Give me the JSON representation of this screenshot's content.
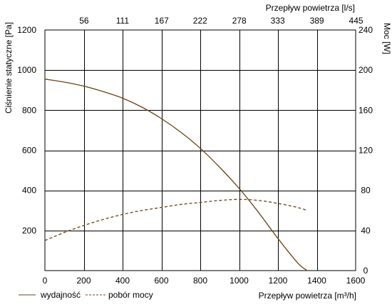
{
  "chart_data": {
    "type": "line",
    "xlabel": "Przepływ powietrza [m³/h]",
    "x_ticks": [
      "0",
      "200",
      "400",
      "600",
      "800",
      "1000",
      "1200",
      "1400",
      "1600"
    ],
    "xlim": [
      0,
      1600
    ],
    "top_axis_label": "Przepływ powietrza [l/s]",
    "top_ticks": [
      "56",
      "111",
      "167",
      "222",
      "278",
      "333",
      "389",
      "445"
    ],
    "ylabel": "Ciśnienie statyczne [Pa]",
    "y_ticks": [
      "200",
      "400",
      "600",
      "800",
      "1000",
      "1200"
    ],
    "ylim": [
      0,
      1200
    ],
    "y2label": "Moc [W]",
    "y2_ticks": [
      "0",
      "40",
      "80",
      "120",
      "160",
      "200",
      "240"
    ],
    "y2lim": [
      0,
      240
    ],
    "grid": true,
    "legend_position": "bottom-left",
    "series": [
      {
        "name": "wydajność",
        "axis": "left",
        "style": "solid",
        "color": "#6b4310",
        "x": [
          0,
          100,
          200,
          300,
          400,
          500,
          600,
          700,
          800,
          900,
          1000,
          1100,
          1200,
          1300,
          1350
        ],
        "values": [
          955,
          940,
          920,
          893,
          860,
          815,
          758,
          690,
          610,
          515,
          410,
          290,
          160,
          40,
          0
        ]
      },
      {
        "name": "pobór mocy",
        "axis": "right",
        "style": "dashed",
        "color": "#6b4310",
        "x": [
          0,
          100,
          200,
          300,
          400,
          500,
          600,
          700,
          800,
          900,
          1000,
          1100,
          1200,
          1300,
          1350
        ],
        "values": [
          30,
          38,
          45,
          51,
          56,
          60,
          63,
          66,
          68,
          70,
          71,
          70,
          67,
          63,
          60
        ]
      }
    ]
  }
}
